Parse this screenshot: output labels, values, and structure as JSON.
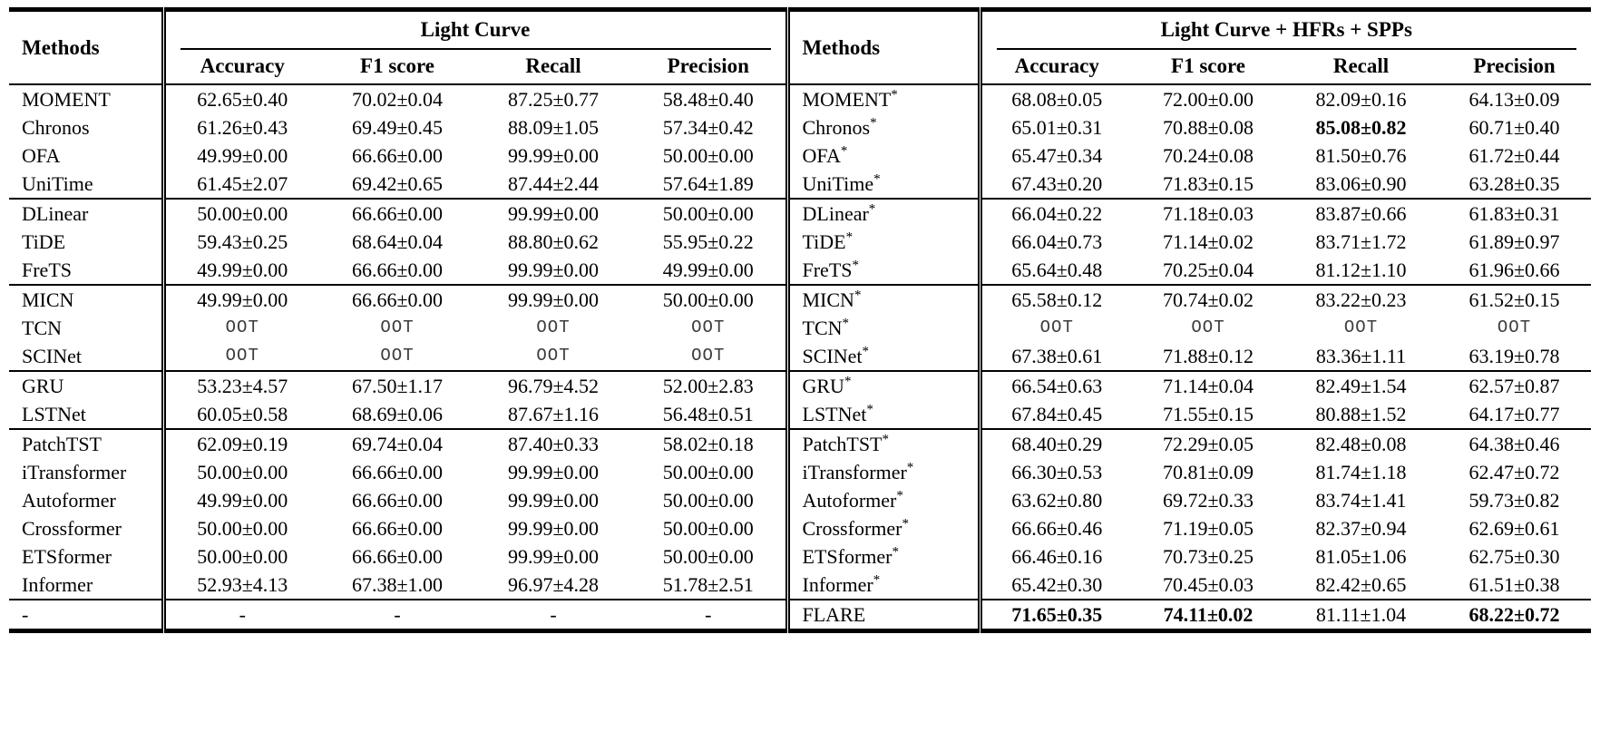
{
  "table": {
    "methods_header": "Methods",
    "left_group_title": "Light Curve",
    "right_group_title": "Light Curve + HFRs + SPPs",
    "columns": [
      "Accuracy",
      "F1 score",
      "Recall",
      "Precision"
    ],
    "rows": [
      {
        "group": 0,
        "left_method": "MOMENT",
        "left_values": [
          "62.65±0.40",
          "70.02±0.04",
          "87.25±0.77",
          "58.48±0.40"
        ],
        "right_method": "MOMENT",
        "right_sup": "*",
        "right_values": [
          "68.08±0.05",
          "72.00±0.00",
          "82.09±0.16",
          "64.13±0.09"
        ],
        "right_bold": []
      },
      {
        "group": 0,
        "left_method": "Chronos",
        "left_values": [
          "61.26±0.43",
          "69.49±0.45",
          "88.09±1.05",
          "57.34±0.42"
        ],
        "right_method": "Chronos",
        "right_sup": "*",
        "right_values": [
          "65.01±0.31",
          "70.88±0.08",
          "85.08±0.82",
          "60.71±0.40"
        ],
        "right_bold": [
          2
        ]
      },
      {
        "group": 0,
        "left_method": "OFA",
        "left_values": [
          "49.99±0.00",
          "66.66±0.00",
          "99.99±0.00",
          "50.00±0.00"
        ],
        "right_method": "OFA",
        "right_sup": "*",
        "right_values": [
          "65.47±0.34",
          "70.24±0.08",
          "81.50±0.76",
          "61.72±0.44"
        ],
        "right_bold": []
      },
      {
        "group": 0,
        "left_method": "UniTime",
        "left_values": [
          "61.45±2.07",
          "69.42±0.65",
          "87.44±2.44",
          "57.64±1.89"
        ],
        "right_method": "UniTime",
        "right_sup": "*",
        "right_values": [
          "67.43±0.20",
          "71.83±0.15",
          "83.06±0.90",
          "63.28±0.35"
        ],
        "right_bold": []
      },
      {
        "group": 1,
        "left_method": "DLinear",
        "left_values": [
          "50.00±0.00",
          "66.66±0.00",
          "99.99±0.00",
          "50.00±0.00"
        ],
        "right_method": "DLinear",
        "right_sup": "*",
        "right_values": [
          "66.04±0.22",
          "71.18±0.03",
          "83.87±0.66",
          "61.83±0.31"
        ],
        "right_bold": []
      },
      {
        "group": 1,
        "left_method": "TiDE",
        "left_values": [
          "59.43±0.25",
          "68.64±0.04",
          "88.80±0.62",
          "55.95±0.22"
        ],
        "right_method": "TiDE",
        "right_sup": "*",
        "right_values": [
          "66.04±0.73",
          "71.14±0.02",
          "83.71±1.72",
          "61.89±0.97"
        ],
        "right_bold": []
      },
      {
        "group": 1,
        "left_method": "FreTS",
        "left_values": [
          "49.99±0.00",
          "66.66±0.00",
          "99.99±0.00",
          "49.99±0.00"
        ],
        "right_method": "FreTS",
        "right_sup": "*",
        "right_values": [
          "65.64±0.48",
          "70.25±0.04",
          "81.12±1.10",
          "61.96±0.66"
        ],
        "right_bold": []
      },
      {
        "group": 2,
        "left_method": "MICN",
        "left_values": [
          "49.99±0.00",
          "66.66±0.00",
          "99.99±0.00",
          "50.00±0.00"
        ],
        "right_method": "MICN",
        "right_sup": "*",
        "right_values": [
          "65.58±0.12",
          "70.74±0.02",
          "83.22±0.23",
          "61.52±0.15"
        ],
        "right_bold": []
      },
      {
        "group": 2,
        "left_method": "TCN",
        "left_values": [
          "OOT",
          "OOT",
          "OOT",
          "OOT"
        ],
        "right_method": "TCN",
        "right_sup": "*",
        "right_values": [
          "OOT",
          "OOT",
          "OOT",
          "OOT"
        ],
        "right_bold": []
      },
      {
        "group": 2,
        "left_method": "SCINet",
        "left_values": [
          "OOT",
          "OOT",
          "OOT",
          "OOT"
        ],
        "right_method": "SCINet",
        "right_sup": "*",
        "right_values": [
          "67.38±0.61",
          "71.88±0.12",
          "83.36±1.11",
          "63.19±0.78"
        ],
        "right_bold": []
      },
      {
        "group": 3,
        "left_method": "GRU",
        "left_values": [
          "53.23±4.57",
          "67.50±1.17",
          "96.79±4.52",
          "52.00±2.83"
        ],
        "right_method": "GRU",
        "right_sup": "*",
        "right_values": [
          "66.54±0.63",
          "71.14±0.04",
          "82.49±1.54",
          "62.57±0.87"
        ],
        "right_bold": []
      },
      {
        "group": 3,
        "left_method": "LSTNet",
        "left_values": [
          "60.05±0.58",
          "68.69±0.06",
          "87.67±1.16",
          "56.48±0.51"
        ],
        "right_method": "LSTNet",
        "right_sup": "*",
        "right_values": [
          "67.84±0.45",
          "71.55±0.15",
          "80.88±1.52",
          "64.17±0.77"
        ],
        "right_bold": []
      },
      {
        "group": 4,
        "left_method": "PatchTST",
        "left_values": [
          "62.09±0.19",
          "69.74±0.04",
          "87.40±0.33",
          "58.02±0.18"
        ],
        "right_method": "PatchTST",
        "right_sup": "*",
        "right_values": [
          "68.40±0.29",
          "72.29±0.05",
          "82.48±0.08",
          "64.38±0.46"
        ],
        "right_bold": []
      },
      {
        "group": 4,
        "left_method": "iTransformer",
        "left_values": [
          "50.00±0.00",
          "66.66±0.00",
          "99.99±0.00",
          "50.00±0.00"
        ],
        "right_method": "iTransformer",
        "right_sup": "*",
        "right_values": [
          "66.30±0.53",
          "70.81±0.09",
          "81.74±1.18",
          "62.47±0.72"
        ],
        "right_bold": []
      },
      {
        "group": 4,
        "left_method": "Autoformer",
        "left_values": [
          "49.99±0.00",
          "66.66±0.00",
          "99.99±0.00",
          "50.00±0.00"
        ],
        "right_method": "Autoformer",
        "right_sup": "*",
        "right_values": [
          "63.62±0.80",
          "69.72±0.33",
          "83.74±1.41",
          "59.73±0.82"
        ],
        "right_bold": []
      },
      {
        "group": 4,
        "left_method": "Crossformer",
        "left_values": [
          "50.00±0.00",
          "66.66±0.00",
          "99.99±0.00",
          "50.00±0.00"
        ],
        "right_method": "Crossformer",
        "right_sup": "*",
        "right_values": [
          "66.66±0.46",
          "71.19±0.05",
          "82.37±0.94",
          "62.69±0.61"
        ],
        "right_bold": []
      },
      {
        "group": 4,
        "left_method": "ETSformer",
        "left_values": [
          "50.00±0.00",
          "66.66±0.00",
          "99.99±0.00",
          "50.00±0.00"
        ],
        "right_method": "ETSformer",
        "right_sup": "*",
        "right_values": [
          "66.46±0.16",
          "70.73±0.25",
          "81.05±1.06",
          "62.75±0.30"
        ],
        "right_bold": []
      },
      {
        "group": 4,
        "left_method": "Informer",
        "left_values": [
          "52.93±4.13",
          "67.38±1.00",
          "96.97±4.28",
          "51.78±2.51"
        ],
        "right_method": "Informer",
        "right_sup": "*",
        "right_values": [
          "65.42±0.30",
          "70.45±0.03",
          "82.42±0.65",
          "61.51±0.38"
        ],
        "right_bold": []
      },
      {
        "group": 5,
        "left_method": "-",
        "left_values": [
          "-",
          "-",
          "-",
          "-"
        ],
        "right_method": "FLARE",
        "right_sup": "",
        "right_values": [
          "71.65±0.35",
          "74.11±0.02",
          "81.11±1.04",
          "68.22±0.72"
        ],
        "right_bold": [
          0,
          1,
          3
        ]
      }
    ]
  }
}
